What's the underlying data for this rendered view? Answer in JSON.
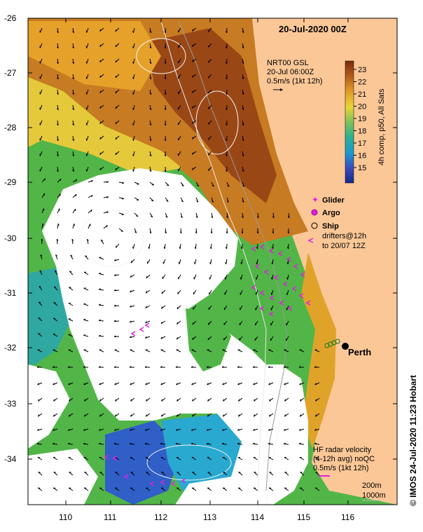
{
  "title": "20-Jul-2020 00Z",
  "gsl": {
    "line1": "NRT00 GSL",
    "line2": "20-Jul 06:00Z",
    "line3": "0.5m/s (1kt 12h)"
  },
  "colorbar": {
    "label": "4h comp, p50, All Sats",
    "ticks": [
      "23",
      "22",
      "21",
      "20",
      "19",
      "18",
      "17",
      "16",
      "15"
    ],
    "colors": [
      "#7a2a10",
      "#a0521b",
      "#c8761e",
      "#e9a12a",
      "#d6d63a",
      "#7fc25a",
      "#2eb28f",
      "#1c8fcf",
      "#3a4bbd",
      "#152a8a"
    ]
  },
  "legend": {
    "glider": "Glider",
    "argo": "Argo",
    "ship": "Ship",
    "drifters1": "drifters@12h",
    "drifters2": "to 20/07 12Z",
    "marker_color": "#e020e0"
  },
  "city": "Perth",
  "hf": {
    "line1": "HF radar velocity",
    "line2": "(4-12h avg) noQC",
    "line3": "0.5m/s (1kt 12h)"
  },
  "depth": {
    "c1": "200m",
    "c2": "1000m"
  },
  "credit": "© IMOS 24-Jul-2020 11:23 Hobart",
  "axes": {
    "lat_ticks": [
      "-26",
      "-27",
      "-28",
      "-29",
      "-30",
      "-31",
      "-32",
      "-33",
      "-34"
    ],
    "lon_ticks": [
      "110",
      "111",
      "112",
      "113",
      "114",
      "115",
      "116"
    ]
  },
  "colors": {
    "land": "#fbc797",
    "no_data": "#ffffff"
  }
}
